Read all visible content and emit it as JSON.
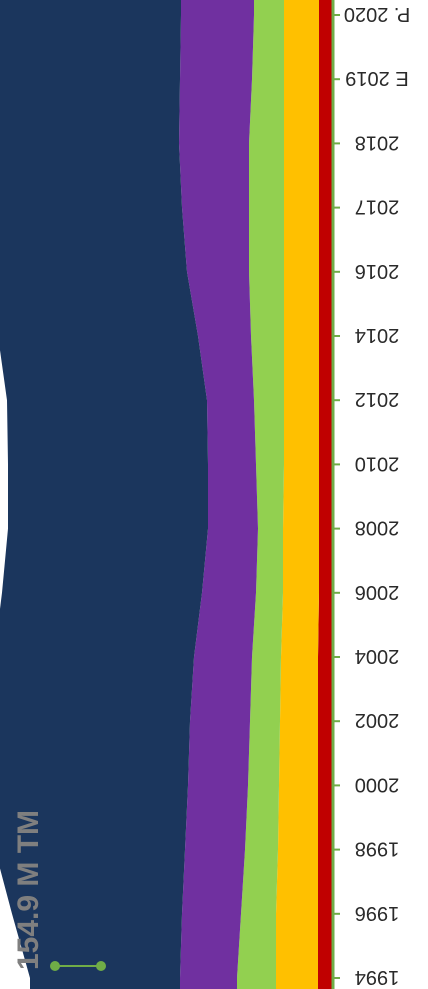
{
  "chart_data": {
    "type": "area",
    "stacked": true,
    "orientation": "rotated",
    "x": [
      "1994",
      "1996",
      "1998",
      "2000",
      "2002",
      "2004",
      "2006",
      "2008",
      "2010",
      "2012",
      "2014",
      "2016",
      "2017",
      "2018",
      "E 2019",
      "P. 2020"
    ],
    "series": [
      {
        "color": "#c00000",
        "values": [
          15,
          15,
          15,
          15,
          15,
          15,
          14,
          14,
          14,
          14,
          14,
          14,
          14,
          14,
          14,
          14
        ]
      },
      {
        "color": "#ffc000",
        "values": [
          42,
          42,
          40,
          39,
          38,
          37,
          36,
          36,
          35,
          35,
          35,
          35,
          35,
          35,
          35,
          35
        ]
      },
      {
        "color": "#92d050",
        "values": [
          39,
          35,
          33,
          31,
          30,
          29,
          27,
          25,
          28,
          30,
          33,
          35,
          35,
          35,
          32,
          30
        ]
      },
      {
        "color": "#7030a0",
        "values": [
          57,
          59,
          60,
          60,
          60,
          58,
          54,
          50,
          48,
          47,
          53,
          62,
          67,
          70,
          72,
          73
        ]
      },
      {
        "color": "#1b365d",
        "values": [
          150,
          170,
          190,
          192,
          200,
          200,
          200,
          200,
          200,
          200,
          200,
          200,
          200,
          200,
          200,
          200
        ]
      }
    ],
    "annotation": "154.9 M TM",
    "axis_color": "#70ad47",
    "grid": false,
    "legend": "none"
  }
}
